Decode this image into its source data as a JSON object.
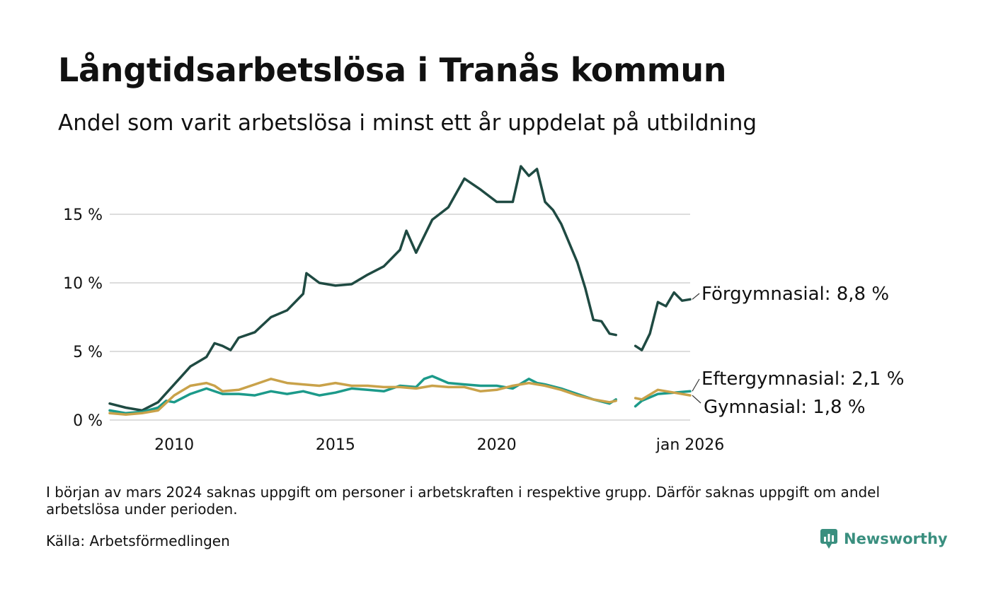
{
  "title": "Långtidsarbetslösa i Tranås kommun",
  "subtitle": "Andel som varit arbetslösa i minst ett år uppdelat på utbildning",
  "note": "I början av mars 2024 saknas uppgift om personer i arbetskraften i respektive grupp. Därför saknas uppgift om andel arbetslösa under perioden.",
  "source": "Källa: Arbetsförmedlingen",
  "brand": "Newsworthy",
  "colors": {
    "forgymnasial": "#1f4a42",
    "eftergymnasial": "#1c9a8a",
    "gymnasial": "#c9a24a",
    "grid": "#dddddd",
    "brand": "#3a8f7f"
  },
  "chart_data": {
    "type": "line",
    "title": "Långtidsarbetslösa i Tranås kommun",
    "xlabel": "",
    "ylabel": "",
    "xlim": [
      2008.0,
      2026.0
    ],
    "ylim": [
      0,
      19
    ],
    "y_ticks": [
      0,
      5,
      10,
      15
    ],
    "y_tick_labels": [
      "0 %",
      "5 %",
      "10 %",
      "15 %"
    ],
    "x_ticks": [
      2010,
      2015,
      2020,
      2026
    ],
    "x_tick_labels": [
      "2010",
      "2015",
      "2020",
      "jan 2026"
    ],
    "gap": [
      2023.75,
      2024.25
    ],
    "series": [
      {
        "name": "Förgymnasial",
        "label": "Förgymnasial: 8,8 %",
        "color": "#1f4a42",
        "points": [
          [
            2008.0,
            1.2
          ],
          [
            2008.5,
            0.9
          ],
          [
            2009.0,
            0.7
          ],
          [
            2009.5,
            1.3
          ],
          [
            2010.0,
            2.6
          ],
          [
            2010.5,
            3.9
          ],
          [
            2011.0,
            4.6
          ],
          [
            2011.25,
            5.6
          ],
          [
            2011.5,
            5.4
          ],
          [
            2011.75,
            5.1
          ],
          [
            2012.0,
            6.0
          ],
          [
            2012.5,
            6.4
          ],
          [
            2013.0,
            7.5
          ],
          [
            2013.5,
            8.0
          ],
          [
            2014.0,
            9.2
          ],
          [
            2014.1,
            10.7
          ],
          [
            2014.5,
            10.0
          ],
          [
            2015.0,
            9.8
          ],
          [
            2015.5,
            9.9
          ],
          [
            2016.0,
            10.6
          ],
          [
            2016.5,
            11.2
          ],
          [
            2017.0,
            12.4
          ],
          [
            2017.2,
            13.8
          ],
          [
            2017.5,
            12.2
          ],
          [
            2018.0,
            14.6
          ],
          [
            2018.5,
            15.5
          ],
          [
            2019.0,
            17.6
          ],
          [
            2019.5,
            16.8
          ],
          [
            2020.0,
            15.9
          ],
          [
            2020.5,
            15.9
          ],
          [
            2020.75,
            18.5
          ],
          [
            2021.0,
            17.8
          ],
          [
            2021.25,
            18.3
          ],
          [
            2021.5,
            15.9
          ],
          [
            2021.75,
            15.3
          ],
          [
            2022.0,
            14.3
          ],
          [
            2022.5,
            11.5
          ],
          [
            2022.75,
            9.6
          ],
          [
            2023.0,
            7.3
          ],
          [
            2023.25,
            7.2
          ],
          [
            2023.5,
            6.3
          ],
          [
            2023.7,
            6.2
          ],
          [
            null,
            null
          ],
          [
            2024.3,
            5.4
          ],
          [
            2024.5,
            5.1
          ],
          [
            2024.75,
            6.3
          ],
          [
            2025.0,
            8.6
          ],
          [
            2025.25,
            8.3
          ],
          [
            2025.5,
            9.3
          ],
          [
            2025.75,
            8.7
          ],
          [
            2026.0,
            8.8
          ]
        ]
      },
      {
        "name": "Eftergymnasial",
        "label": "Eftergymnasial: 2,1 %",
        "color": "#1c9a8a",
        "points": [
          [
            2008.0,
            0.7
          ],
          [
            2008.5,
            0.5
          ],
          [
            2009.0,
            0.6
          ],
          [
            2009.5,
            0.9
          ],
          [
            2009.75,
            1.4
          ],
          [
            2010.0,
            1.3
          ],
          [
            2010.5,
            1.9
          ],
          [
            2011.0,
            2.3
          ],
          [
            2011.5,
            1.9
          ],
          [
            2012.0,
            1.9
          ],
          [
            2012.5,
            1.8
          ],
          [
            2013.0,
            2.1
          ],
          [
            2013.5,
            1.9
          ],
          [
            2014.0,
            2.1
          ],
          [
            2014.5,
            1.8
          ],
          [
            2015.0,
            2.0
          ],
          [
            2015.5,
            2.3
          ],
          [
            2016.0,
            2.2
          ],
          [
            2016.5,
            2.1
          ],
          [
            2017.0,
            2.5
          ],
          [
            2017.5,
            2.4
          ],
          [
            2017.75,
            3.0
          ],
          [
            2018.0,
            3.2
          ],
          [
            2018.5,
            2.7
          ],
          [
            2019.0,
            2.6
          ],
          [
            2019.5,
            2.5
          ],
          [
            2020.0,
            2.5
          ],
          [
            2020.5,
            2.3
          ],
          [
            2021.0,
            3.0
          ],
          [
            2021.25,
            2.7
          ],
          [
            2021.5,
            2.6
          ],
          [
            2022.0,
            2.3
          ],
          [
            2022.5,
            1.9
          ],
          [
            2023.0,
            1.5
          ],
          [
            2023.5,
            1.2
          ],
          [
            2023.7,
            1.5
          ],
          [
            null,
            null
          ],
          [
            2024.3,
            1.0
          ],
          [
            2024.5,
            1.4
          ],
          [
            2025.0,
            1.9
          ],
          [
            2025.5,
            2.0
          ],
          [
            2026.0,
            2.1
          ]
        ]
      },
      {
        "name": "Gymnasial",
        "label": "Gymnasial: 1,8 %",
        "color": "#c9a24a",
        "points": [
          [
            2008.0,
            0.5
          ],
          [
            2008.5,
            0.4
          ],
          [
            2009.0,
            0.5
          ],
          [
            2009.5,
            0.7
          ],
          [
            2010.0,
            1.8
          ],
          [
            2010.5,
            2.5
          ],
          [
            2011.0,
            2.7
          ],
          [
            2011.25,
            2.5
          ],
          [
            2011.5,
            2.1
          ],
          [
            2012.0,
            2.2
          ],
          [
            2012.5,
            2.6
          ],
          [
            2013.0,
            3.0
          ],
          [
            2013.5,
            2.7
          ],
          [
            2014.0,
            2.6
          ],
          [
            2014.5,
            2.5
          ],
          [
            2015.0,
            2.7
          ],
          [
            2015.5,
            2.5
          ],
          [
            2016.0,
            2.5
          ],
          [
            2016.5,
            2.4
          ],
          [
            2017.0,
            2.4
          ],
          [
            2017.5,
            2.3
          ],
          [
            2018.0,
            2.5
          ],
          [
            2018.5,
            2.4
          ],
          [
            2019.0,
            2.4
          ],
          [
            2019.5,
            2.1
          ],
          [
            2020.0,
            2.2
          ],
          [
            2020.5,
            2.5
          ],
          [
            2021.0,
            2.7
          ],
          [
            2021.5,
            2.5
          ],
          [
            2022.0,
            2.2
          ],
          [
            2022.5,
            1.8
          ],
          [
            2023.0,
            1.5
          ],
          [
            2023.5,
            1.3
          ],
          [
            2023.7,
            1.4
          ],
          [
            null,
            null
          ],
          [
            2024.3,
            1.6
          ],
          [
            2024.5,
            1.5
          ],
          [
            2025.0,
            2.2
          ],
          [
            2025.5,
            2.0
          ],
          [
            2026.0,
            1.8
          ]
        ]
      }
    ]
  }
}
